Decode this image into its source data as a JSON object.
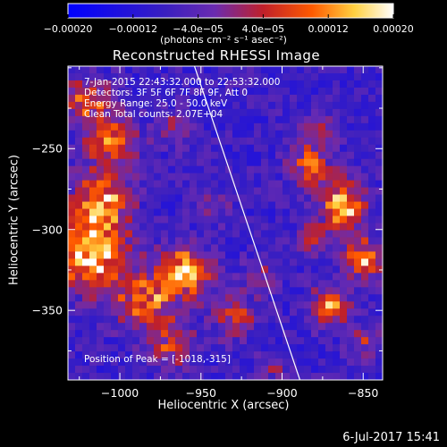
{
  "colorbar": {
    "tick_labels": [
      "-0.00020",
      "-0.00012",
      "-4.0e-05",
      "4.0e-05",
      "0.00012",
      "0.00020"
    ],
    "tick_values": [
      -0.0002,
      -0.00012,
      -4e-05,
      4e-05,
      0.00012,
      0.0002
    ],
    "range": [
      -0.0002,
      0.0002
    ],
    "units": "(photons cm⁻² s⁻¹ asec⁻²)",
    "colors": [
      "#0000ff",
      "#3a1fc0",
      "#6a2bb0",
      "#c0202a",
      "#ff5a00",
      "#ffd040",
      "#ffffff"
    ]
  },
  "chart_data": {
    "type": "heatmap",
    "title": "Reconstructed RHESSI Image",
    "xlabel": "Heliocentric X (arcsec)",
    "ylabel": "Heliocentric Y (arcsec)",
    "xlim": [
      -1032,
      -838
    ],
    "ylim": [
      -393,
      -199
    ],
    "x_ticks": [
      -1000,
      -950,
      -900,
      -850
    ],
    "x_tick_labels": [
      "-1000",
      "-950",
      "-900",
      "-850"
    ],
    "y_ticks": [
      -250,
      -300,
      -350
    ],
    "y_tick_labels": [
      "-250",
      "-300",
      "-350"
    ],
    "peak": [
      -1018,
      -315
    ],
    "limb_line": {
      "x": [
        -954,
        -889
      ],
      "y": [
        -199,
        -393
      ]
    },
    "annotations": [
      "7-Jan-2015 22:43:32.000 to 22:53:32.000",
      "Detectors: 3F 5F 6F 7F 8F 9F, Att 0",
      "Energy Range: 25.0 - 50.0 keV",
      "Clean     Total counts: 2.07E+04"
    ],
    "peak_label": "Position of Peak = [-1018,-315]",
    "hot_regions": [
      {
        "x": -1018,
        "y": -315,
        "amp": 1.0,
        "r": 22
      },
      {
        "x": -1012,
        "y": -283,
        "amp": 0.75,
        "r": 18
      },
      {
        "x": -1005,
        "y": -245,
        "amp": 0.65,
        "r": 16
      },
      {
        "x": -1020,
        "y": -220,
        "amp": 0.6,
        "r": 14
      },
      {
        "x": -985,
        "y": -345,
        "amp": 0.7,
        "r": 18
      },
      {
        "x": -960,
        "y": -327,
        "amp": 0.9,
        "r": 16
      },
      {
        "x": -968,
        "y": -372,
        "amp": 0.55,
        "r": 14
      },
      {
        "x": -930,
        "y": -355,
        "amp": 0.6,
        "r": 12
      },
      {
        "x": -915,
        "y": -330,
        "amp": 0.35,
        "r": 10
      },
      {
        "x": -965,
        "y": -238,
        "amp": 0.4,
        "r": 10
      },
      {
        "x": -940,
        "y": -285,
        "amp": 0.3,
        "r": 10
      },
      {
        "x": -862,
        "y": -285,
        "amp": 0.9,
        "r": 14
      },
      {
        "x": -882,
        "y": -262,
        "amp": 0.75,
        "r": 12
      },
      {
        "x": -880,
        "y": -305,
        "amp": 0.5,
        "r": 10
      },
      {
        "x": -850,
        "y": -318,
        "amp": 0.8,
        "r": 12
      },
      {
        "x": -870,
        "y": -348,
        "amp": 0.75,
        "r": 12
      },
      {
        "x": -878,
        "y": -238,
        "amp": 0.45,
        "r": 10
      },
      {
        "x": -848,
        "y": -370,
        "amp": 0.4,
        "r": 10
      },
      {
        "x": -905,
        "y": -385,
        "amp": 0.3,
        "r": 10
      }
    ]
  },
  "footer": {
    "date": "6-Jul-2017 15:41"
  }
}
